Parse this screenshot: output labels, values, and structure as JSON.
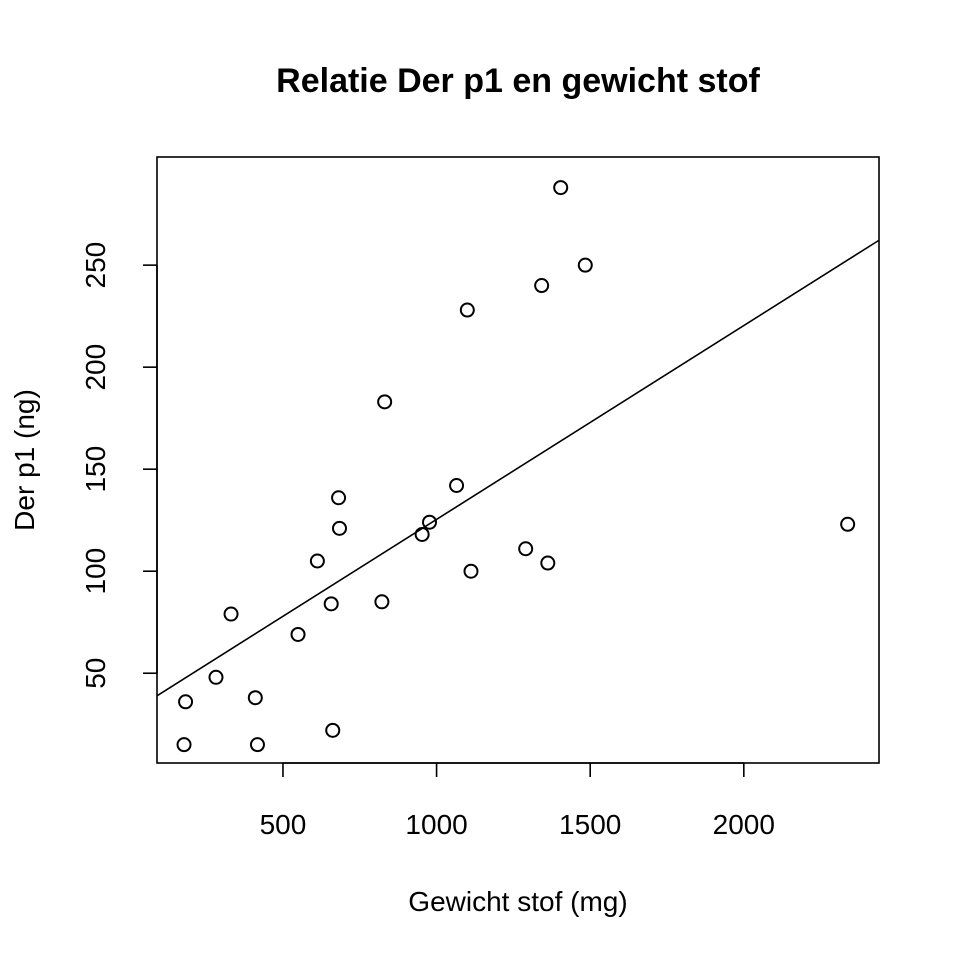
{
  "chart_data": {
    "type": "scatter",
    "title": "Relatie Der p1 en gewicht stof",
    "xlabel": "Gewicht stof (mg)",
    "ylabel": "Der p1 (ng)",
    "xlim": [
      90,
      2440
    ],
    "ylim": [
      6,
      303
    ],
    "x_ticks": [
      500,
      1000,
      1500,
      2000
    ],
    "y_ticks": [
      50,
      100,
      150,
      200,
      250
    ],
    "grid": false,
    "points": [
      {
        "x": 178,
        "y": 15
      },
      {
        "x": 183,
        "y": 36
      },
      {
        "x": 282,
        "y": 48
      },
      {
        "x": 331,
        "y": 79
      },
      {
        "x": 410,
        "y": 38
      },
      {
        "x": 417,
        "y": 15
      },
      {
        "x": 549,
        "y": 69
      },
      {
        "x": 612,
        "y": 105
      },
      {
        "x": 657,
        "y": 84
      },
      {
        "x": 662,
        "y": 22
      },
      {
        "x": 681,
        "y": 136
      },
      {
        "x": 684,
        "y": 121
      },
      {
        "x": 822,
        "y": 85
      },
      {
        "x": 831,
        "y": 183
      },
      {
        "x": 953,
        "y": 118
      },
      {
        "x": 977,
        "y": 124
      },
      {
        "x": 1065,
        "y": 142
      },
      {
        "x": 1100,
        "y": 228
      },
      {
        "x": 1112,
        "y": 100
      },
      {
        "x": 1290,
        "y": 111
      },
      {
        "x": 1342,
        "y": 240
      },
      {
        "x": 1362,
        "y": 104
      },
      {
        "x": 1404,
        "y": 288
      },
      {
        "x": 1484,
        "y": 250
      },
      {
        "x": 2338,
        "y": 123
      }
    ],
    "regression_line": {
      "intercept": 30.4,
      "slope": 0.095
    }
  }
}
